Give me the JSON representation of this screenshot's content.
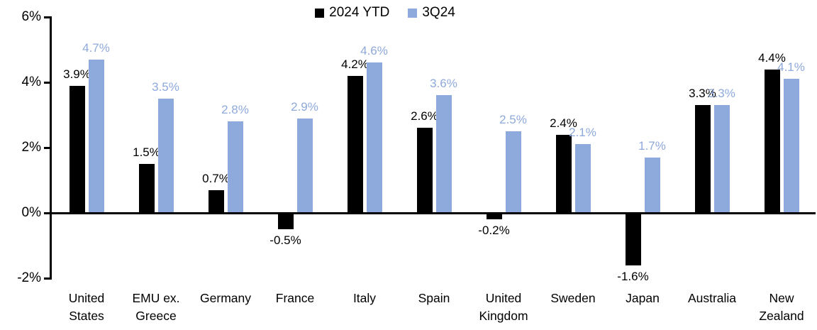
{
  "chart_data": {
    "type": "bar",
    "title": "",
    "xlabel": "",
    "ylabel": "",
    "categories": [
      "United States",
      "EMU ex. Greece",
      "Germany",
      "France",
      "Italy",
      "Spain",
      "United Kingdom",
      "Sweden",
      "Japan",
      "Australia",
      "New Zealand"
    ],
    "series": [
      {
        "name": "2024 YTD",
        "color": "#000000",
        "label_color": "#000000",
        "values": [
          3.9,
          1.5,
          0.7,
          -0.5,
          4.2,
          2.6,
          -0.2,
          2.4,
          -1.6,
          3.3,
          4.4
        ]
      },
      {
        "name": "3Q24",
        "color": "#8EA9DB",
        "label_color": "#8EA9DB",
        "values": [
          4.7,
          3.5,
          2.8,
          2.9,
          4.6,
          3.6,
          2.5,
          2.1,
          1.7,
          3.3,
          4.1
        ]
      }
    ],
    "data_labels": {
      "series_2024_ytd": [
        "3.9%",
        "1.5%",
        "0.7%",
        "-0.5%",
        "4.2%",
        "2.6%",
        "-0.2%",
        "2.4%",
        "-1.6%",
        "3.3%",
        "4.4%"
      ],
      "series_3q24": [
        "4.7%",
        "3.5%",
        "2.8%",
        "2.9%",
        "4.6%",
        "3.6%",
        "2.5%",
        "2.1%",
        "1.7%",
        "3.3%",
        "4.1%"
      ]
    },
    "y_axis": {
      "ticks": [
        6,
        4,
        2,
        0,
        -2
      ],
      "tick_labels": [
        "6%",
        "4%",
        "2%",
        "0%",
        "-2%"
      ],
      "unit": "%",
      "ylim": [
        -2,
        6
      ]
    },
    "legend_position": "top-center",
    "grid": false
  }
}
